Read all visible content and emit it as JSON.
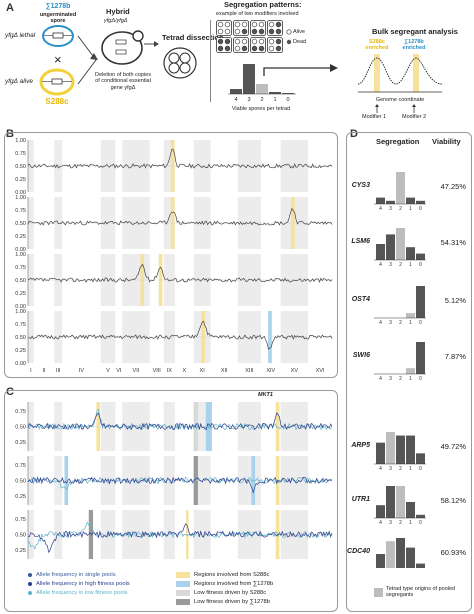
{
  "panel_labels": {
    "a": "A",
    "b": "B",
    "c": "C",
    "d": "D"
  },
  "panelA": {
    "strain1_name": "∑1278b",
    "strain1_desc": "ungerminated spore",
    "strain1_lethal": "yfgΔ lethal",
    "strain2_alive": "yfgΔ alive",
    "strain2_name": "S288c",
    "cross_symbol": "×",
    "hybrid_title": "Hybrid",
    "hybrid_genotype": "yfgΔ/yfgΔ",
    "deletion_text": "Deletion of both copies of conditional essential gene yfgΔ",
    "tetrad_label": "Tetrad dissection",
    "seg_title": "Segregation patterns:",
    "seg_subtitle": "example of two modifiers involved",
    "legend_alive": "Alive",
    "legend_dead": "Dead",
    "viable_label": "Viable spores per tetrad",
    "bsa_title": "Bulk segregant analysis",
    "enriched_s288c": "S288c enriched",
    "enriched_sigma": "∑1278b enriched",
    "genome_coord": "Genome coordinate",
    "modifier1": "Modifier 1",
    "modifier2": "Modifier 2",
    "seg_hist": {
      "type": "bar",
      "categories": [
        "4",
        "3",
        "2",
        "1",
        "0"
      ],
      "values": [
        1,
        6,
        2,
        0.4,
        0.2
      ]
    }
  },
  "panelB": {
    "yticks": [
      "1.00",
      "0.75",
      "0.50",
      "0.25",
      "0.00"
    ],
    "chromosomes": [
      "I",
      "II",
      "III",
      "IV",
      "V",
      "VI",
      "VII",
      "VIII",
      "IX",
      "X",
      "XI",
      "XII",
      "XIII",
      "XIV",
      "XV",
      "XVI"
    ],
    "genes": [
      {
        "name": "CYS3",
        "viability": "47.25%"
      },
      {
        "name": "LSM6",
        "viability": "54.31%"
      },
      {
        "name": "OST4",
        "viability": "5.12%"
      },
      {
        "name": "SWI6",
        "viability": "7.87%"
      }
    ]
  },
  "panelC": {
    "yticks": [
      "0.75",
      "0.50",
      "0.25"
    ],
    "annotation": "MKT1",
    "chromosomes": [
      "I",
      "II",
      "III",
      "IV",
      "V",
      "VI",
      "VII",
      "VIII",
      "IX",
      "X",
      "XI",
      "XII",
      "XIII",
      "XIV",
      "XV",
      "XVI"
    ],
    "genes": [
      {
        "name": "ARP5",
        "viability": "49.72%"
      },
      {
        "name": "UTR1",
        "viability": "58.12%"
      },
      {
        "name": "CDC40",
        "viability": "60.93%"
      }
    ],
    "legend": [
      {
        "label": "Allele frequency in single pools",
        "color": "#3a5a9c",
        "kind": "dot"
      },
      {
        "label": "Allele frequency in high fitness pools",
        "color": "#2b3d8f",
        "kind": "dot"
      },
      {
        "label": "Allele frequency in low fitness pools",
        "color": "#5fb3c9",
        "kind": "dot"
      },
      {
        "label": "Regions involved from S288c",
        "color": "#f6e29a",
        "kind": "box"
      },
      {
        "label": "Regions involved from ∑1278b",
        "color": "#a9d3ec",
        "kind": "box"
      },
      {
        "label": "Low fitness driven by S288c",
        "color": "#d9d9d9",
        "kind": "box"
      },
      {
        "label": "Low fitness driven by ∑1278b",
        "color": "#9a9a9a",
        "kind": "box"
      }
    ]
  },
  "panelD": {
    "col_segregation": "Segregation",
    "col_viability": "Viability",
    "tick_labels": [
      "4",
      "3",
      "2",
      "1",
      "0"
    ],
    "legend_text": "Tetrad type origins of pooled segregants",
    "colors": {
      "dark": "#555555",
      "light": "#bdbdbd"
    },
    "chart_data": [
      {
        "type": "bar",
        "gene": "CYS3",
        "categories": [
          "4",
          "3",
          "2",
          "1",
          "0"
        ],
        "values": [
          2,
          1,
          10,
          2,
          1
        ],
        "highlight": 2
      },
      {
        "type": "bar",
        "gene": "LSM6",
        "categories": [
          "4",
          "3",
          "2",
          "1",
          "0"
        ],
        "values": [
          5,
          8,
          10,
          4,
          2
        ],
        "highlight": 2
      },
      {
        "type": "bar",
        "gene": "OST4",
        "categories": [
          "4",
          "3",
          "2",
          "1",
          "0"
        ],
        "values": [
          0,
          0,
          0,
          2,
          13
        ],
        "highlight": 3
      },
      {
        "type": "bar",
        "gene": "SWI6",
        "categories": [
          "4",
          "3",
          "2",
          "1",
          "0"
        ],
        "values": [
          0,
          0,
          0,
          2,
          11
        ],
        "highlight": 3
      },
      {
        "type": "bar",
        "gene": "ARP5",
        "categories": [
          "4",
          "3",
          "2",
          "1",
          "0"
        ],
        "values": [
          6,
          9,
          8,
          8,
          3
        ],
        "highlight": 1
      },
      {
        "type": "bar",
        "gene": "UTR1",
        "categories": [
          "4",
          "3",
          "2",
          "1",
          "0"
        ],
        "values": [
          4,
          10,
          10,
          5,
          1
        ],
        "highlight": 2
      },
      {
        "type": "bar",
        "gene": "CDC40",
        "categories": [
          "4",
          "3",
          "2",
          "1",
          "0"
        ],
        "values": [
          5,
          9,
          10,
          7,
          2
        ],
        "highlight": 1
      }
    ]
  }
}
